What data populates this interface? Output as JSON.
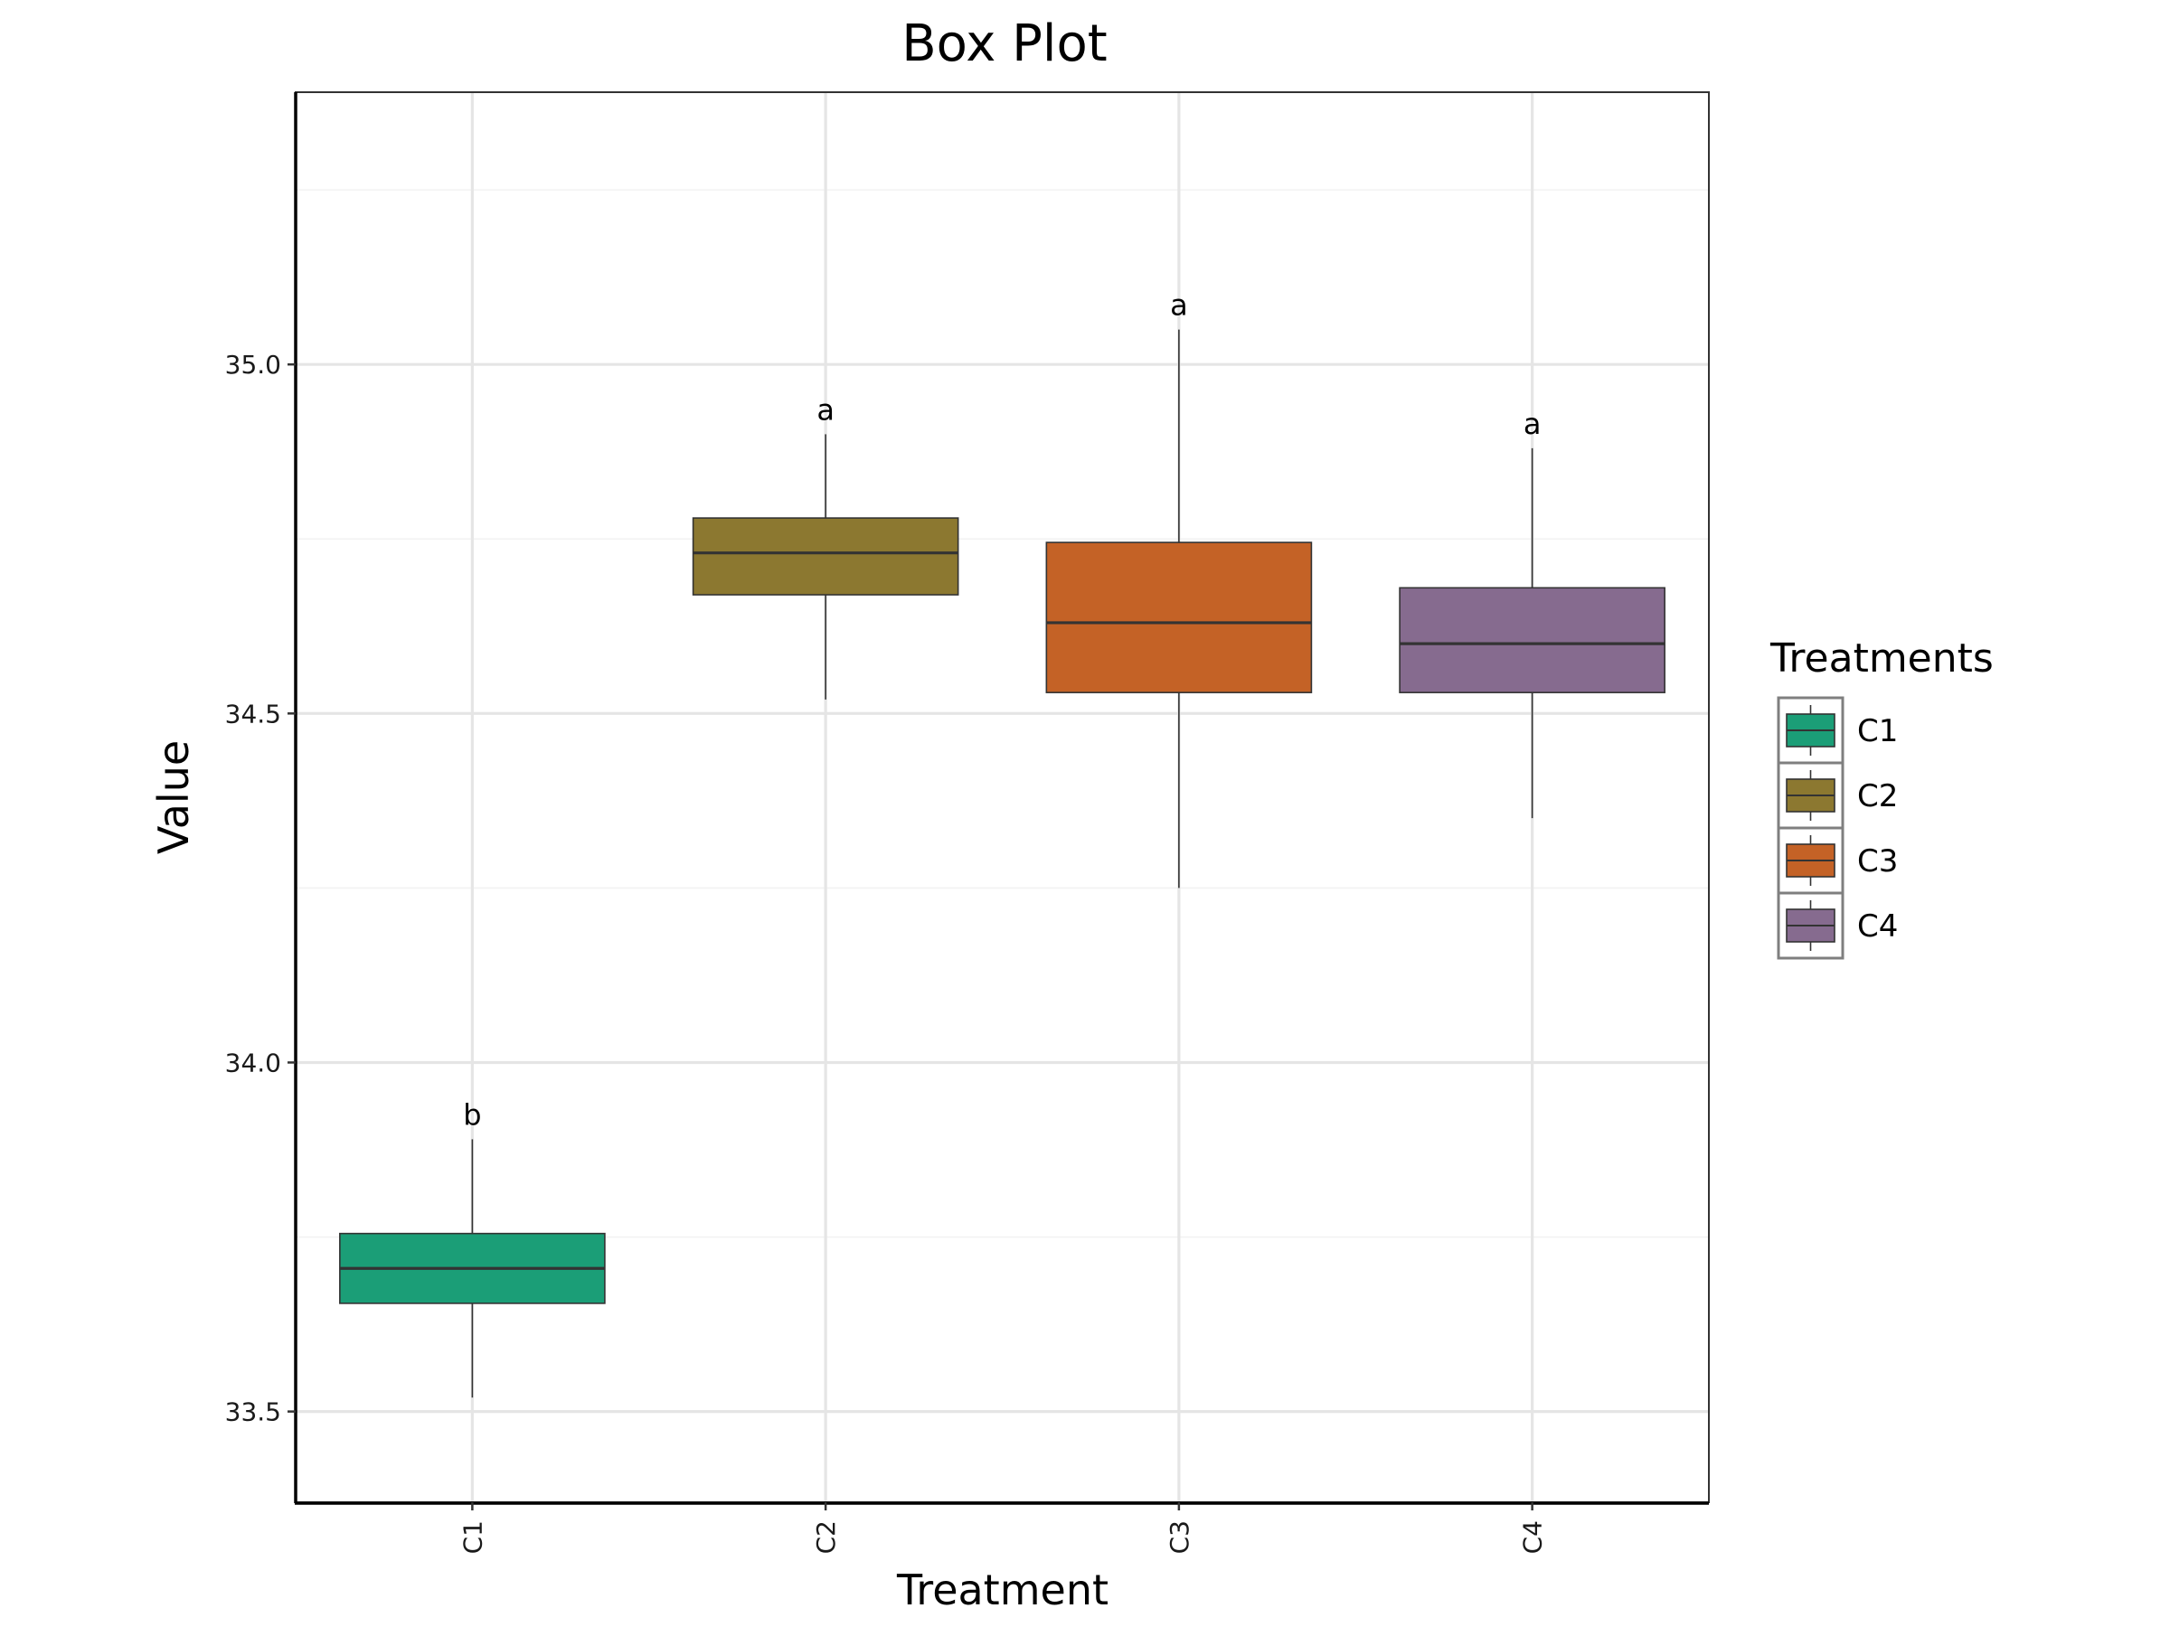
{
  "chart_data": {
    "type": "box",
    "title": "Box Plot",
    "xlabel": "Treatment",
    "ylabel": "Value",
    "ylim": [
      33.37,
      35.39
    ],
    "yticks": [
      33.5,
      34.0,
      34.5,
      35.0
    ],
    "categories": [
      "C1",
      "C2",
      "C3",
      "C4"
    ],
    "series": [
      {
        "category": "C1",
        "color": "#1b9e77",
        "whisker_low": 33.52,
        "q1": 33.655,
        "median": 33.705,
        "q3": 33.755,
        "whisker_high": 33.89,
        "letter": "b"
      },
      {
        "category": "C2",
        "color": "#8c7830",
        "whisker_low": 34.52,
        "q1": 34.67,
        "median": 34.73,
        "q3": 34.78,
        "whisker_high": 34.9,
        "letter": "a"
      },
      {
        "category": "C3",
        "color": "#c46226",
        "whisker_low": 34.25,
        "q1": 34.53,
        "median": 34.63,
        "q3": 34.745,
        "whisker_high": 35.05,
        "letter": "a"
      },
      {
        "category": "C4",
        "color": "#866b8f",
        "whisker_low": 34.35,
        "q1": 34.53,
        "median": 34.6,
        "q3": 34.68,
        "whisker_high": 34.88,
        "letter": "a"
      }
    ],
    "legend": {
      "title": "Treatments",
      "position": "right",
      "items": [
        "C1",
        "C2",
        "C3",
        "C4"
      ]
    },
    "grid": true
  }
}
